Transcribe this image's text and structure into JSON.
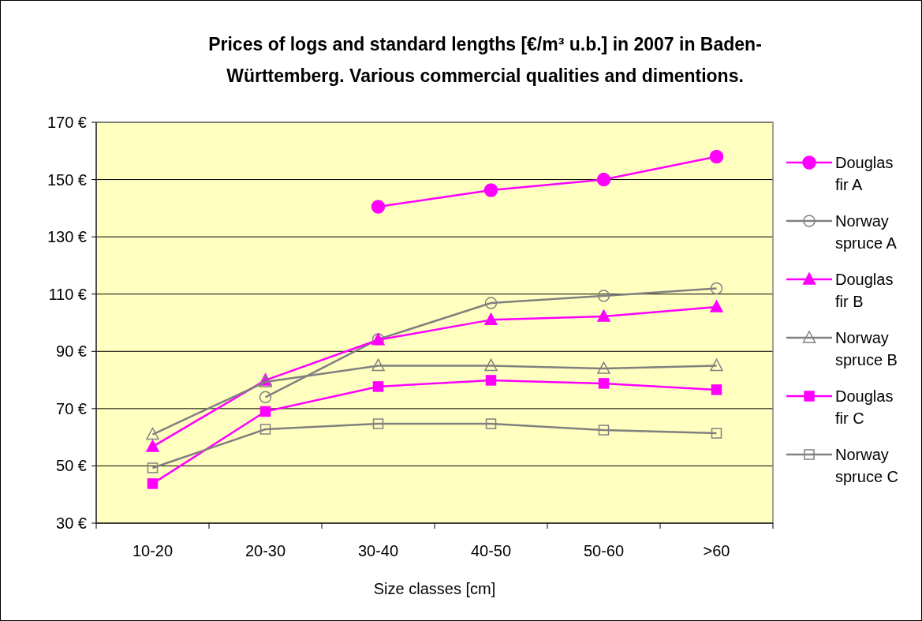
{
  "chart_data": {
    "type": "line",
    "title": "Prices of logs and standard lengths [€/m³ u.b.] in 2007 in Baden-Württemberg. Various commercial qualities and dimentions.",
    "xlabel": "Size classes [cm]",
    "categories": [
      "10-20",
      "20-30",
      "30-40",
      "40-50",
      "50-60",
      ">60"
    ],
    "ylim": [
      30,
      170
    ],
    "yticks": [
      {
        "value": 30,
        "label": "30 €"
      },
      {
        "value": 50,
        "label": "50 €"
      },
      {
        "value": 70,
        "label": "70 €"
      },
      {
        "value": 90,
        "label": "90 €"
      },
      {
        "value": 110,
        "label": "110 €"
      },
      {
        "value": 130,
        "label": "130 €"
      },
      {
        "value": 150,
        "label": "150 €"
      },
      {
        "value": 170,
        "label": "170 €"
      }
    ],
    "grid": "y",
    "legend": "right",
    "series": [
      {
        "name": "Douglas fir A",
        "color": "#ff00ff",
        "marker": "circle",
        "values": [
          null,
          null,
          140.5,
          146.3,
          150,
          158
        ]
      },
      {
        "name": "Norway spruce A",
        "color": "#808080",
        "marker": "circle",
        "values": [
          null,
          74,
          94.2,
          106.9,
          109.4,
          112
        ]
      },
      {
        "name": "Douglas fir B",
        "color": "#ff00ff",
        "marker": "triangle",
        "values": [
          56.7,
          79.9,
          94,
          101,
          102.2,
          105.5
        ]
      },
      {
        "name": "Norway spruce B",
        "color": "#808080",
        "marker": "triangle",
        "values": [
          61,
          79.3,
          85,
          85,
          84,
          85
        ]
      },
      {
        "name": "Douglas fir C",
        "color": "#ff00ff",
        "marker": "square",
        "values": [
          43.8,
          69,
          77.7,
          79.9,
          78.8,
          76.6
        ]
      },
      {
        "name": "Norway spruce C",
        "color": "#808080",
        "marker": "square",
        "values": [
          49.3,
          62.8,
          64.7,
          64.7,
          62.5,
          61.4
        ]
      }
    ]
  }
}
